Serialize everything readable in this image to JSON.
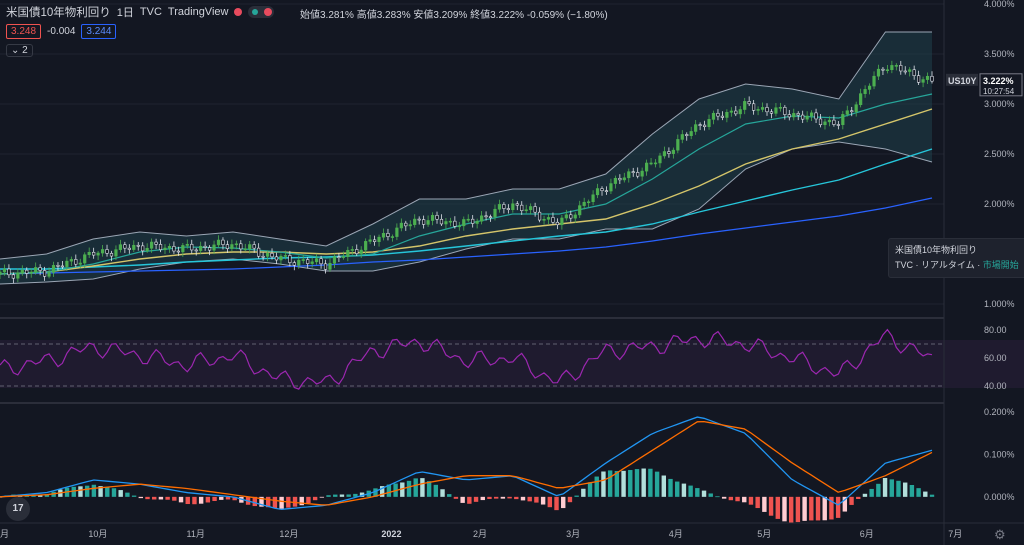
{
  "header": {
    "symbol_name": "米国債10年物利回り",
    "interval": "1日",
    "exchange": "TVC",
    "source": "TradingView",
    "ohlc": {
      "open_label": "始値",
      "open": "3.281%",
      "high_label": "高値",
      "high": "3.283%",
      "low_label": "安値",
      "low": "3.209%",
      "close_label": "終値",
      "close": "3.222%",
      "change": "-0.059% (−1.80%)"
    }
  },
  "trade": {
    "sell": "3.248",
    "spread": "-0.004",
    "buy": "3.244",
    "collapse_label": "2"
  },
  "price_axis": {
    "ticks": [
      "4.000%",
      "3.500%",
      "3.000%",
      "2.500%",
      "2.000%",
      "1.000%"
    ],
    "symbol_tag": "US10Y",
    "last_price": "3.222%",
    "countdown": "10:27:54"
  },
  "tooltip": {
    "name": "米国債10年物利回り",
    "source": "TVC",
    "rt": "リアルタイム",
    "status": "市場開始"
  },
  "rsi_axis": {
    "ticks": [
      "80.00",
      "60.00",
      "40.00"
    ]
  },
  "macd_axis": {
    "ticks": [
      "0.200%",
      "0.100%",
      "0.000%"
    ]
  },
  "time_axis": [
    "月",
    "10月",
    "11月",
    "12月",
    "2022",
    "2月",
    "3月",
    "4月",
    "5月",
    "6月",
    "7月"
  ],
  "colors": {
    "up": "#26a69a",
    "down": "#ef5350",
    "candle_up": "#4caf50",
    "ma_short": "#26a69a",
    "ma_mid": "#d4c56a",
    "ma_long": "#26c6da",
    "ma_xlong": "#2962ff",
    "rsi": "#9c27b0",
    "macd": "#2196f3",
    "signal": "#ff6d00"
  },
  "chart_data": [
    {
      "type": "line",
      "panel": "price",
      "title": "米国債10年物利回り",
      "ylabel": "%",
      "ylim": [
        0.9,
        4.0
      ],
      "x": [
        "2021-09-01",
        "2021-09-15",
        "2021-10-01",
        "2021-10-15",
        "2021-11-01",
        "2021-11-15",
        "2021-12-01",
        "2021-12-15",
        "2022-01-03",
        "2022-01-17",
        "2022-02-01",
        "2022-02-15",
        "2022-03-01",
        "2022-03-15",
        "2022-04-01",
        "2022-04-15",
        "2022-05-02",
        "2022-05-16",
        "2022-06-01",
        "2022-06-15",
        "2022-06-24"
      ],
      "series": [
        {
          "name": "close",
          "values": [
            1.3,
            1.33,
            1.5,
            1.58,
            1.55,
            1.6,
            1.45,
            1.4,
            1.63,
            1.85,
            1.8,
            2.0,
            1.8,
            2.18,
            2.4,
            2.8,
            2.98,
            2.9,
            2.8,
            3.4,
            3.22
          ]
        },
        {
          "name": "ma_short",
          "values": [
            1.3,
            1.32,
            1.4,
            1.52,
            1.57,
            1.56,
            1.52,
            1.46,
            1.5,
            1.68,
            1.8,
            1.9,
            1.9,
            2.0,
            2.25,
            2.55,
            2.8,
            2.88,
            2.86,
            3.0,
            3.1
          ]
        },
        {
          "name": "ma_mid",
          "values": [
            1.3,
            1.32,
            1.38,
            1.45,
            1.5,
            1.52,
            1.52,
            1.5,
            1.52,
            1.58,
            1.68,
            1.75,
            1.8,
            1.85,
            2.0,
            2.18,
            2.4,
            2.55,
            2.65,
            2.8,
            2.95
          ]
        },
        {
          "name": "ma_long",
          "values": [
            1.35,
            1.35,
            1.37,
            1.39,
            1.42,
            1.44,
            1.46,
            1.47,
            1.49,
            1.53,
            1.58,
            1.63,
            1.68,
            1.72,
            1.8,
            1.92,
            2.03,
            2.14,
            2.24,
            2.4,
            2.55
          ]
        },
        {
          "name": "ma_xlong",
          "values": [
            1.3,
            1.31,
            1.32,
            1.33,
            1.34,
            1.35,
            1.37,
            1.39,
            1.42,
            1.44,
            1.47,
            1.5,
            1.53,
            1.57,
            1.63,
            1.7,
            1.76,
            1.82,
            1.88,
            1.96,
            2.06
          ]
        },
        {
          "name": "bb_upper",
          "values": [
            1.45,
            1.5,
            1.65,
            1.72,
            1.68,
            1.72,
            1.65,
            1.58,
            1.8,
            2.05,
            2.05,
            2.15,
            2.15,
            2.3,
            2.7,
            3.05,
            3.2,
            3.15,
            3.05,
            3.72,
            3.72
          ]
        },
        {
          "name": "bb_lower",
          "values": [
            1.2,
            1.22,
            1.25,
            1.35,
            1.42,
            1.45,
            1.4,
            1.33,
            1.33,
            1.42,
            1.55,
            1.65,
            1.65,
            1.75,
            1.75,
            1.95,
            2.35,
            2.55,
            2.62,
            2.55,
            2.42
          ]
        }
      ]
    },
    {
      "type": "line",
      "panel": "rsi",
      "ylim": [
        30,
        85
      ],
      "bands": [
        40,
        70
      ],
      "x": [
        "2021-09-01",
        "2021-09-15",
        "2021-10-01",
        "2021-10-15",
        "2021-11-01",
        "2021-11-15",
        "2021-12-01",
        "2021-12-15",
        "2022-01-03",
        "2022-01-17",
        "2022-02-01",
        "2022-02-15",
        "2022-03-01",
        "2022-03-15",
        "2022-04-01",
        "2022-04-15",
        "2022-05-02",
        "2022-05-16",
        "2022-06-01",
        "2022-06-15",
        "2022-06-24"
      ],
      "series": [
        {
          "name": "RSI",
          "values": [
            52,
            58,
            68,
            62,
            55,
            62,
            45,
            42,
            65,
            72,
            58,
            60,
            42,
            65,
            68,
            74,
            70,
            60,
            48,
            76,
            59
          ]
        }
      ]
    },
    {
      "type": "bar",
      "panel": "macd",
      "ylim": [
        -0.05,
        0.21
      ],
      "x": [
        "2021-09-01",
        "2021-09-15",
        "2021-10-01",
        "2021-10-15",
        "2021-11-01",
        "2021-11-15",
        "2021-12-01",
        "2021-12-15",
        "2022-01-03",
        "2022-01-17",
        "2022-02-01",
        "2022-02-15",
        "2022-03-01",
        "2022-03-15",
        "2022-04-01",
        "2022-04-15",
        "2022-05-02",
        "2022-05-16",
        "2022-06-01",
        "2022-06-15",
        "2022-06-24"
      ],
      "series": [
        {
          "name": "MACD",
          "values": [
            0.0,
            0.01,
            0.04,
            0.03,
            0.01,
            0.0,
            -0.03,
            -0.02,
            0.01,
            0.06,
            0.04,
            0.05,
            0.0,
            0.08,
            0.15,
            0.19,
            0.15,
            0.04,
            -0.02,
            0.08,
            0.11
          ]
        },
        {
          "name": "Signal",
          "values": [
            0.0,
            0.005,
            0.02,
            0.03,
            0.02,
            0.005,
            -0.01,
            -0.02,
            0.0,
            0.03,
            0.05,
            0.05,
            0.02,
            0.04,
            0.11,
            0.18,
            0.16,
            0.08,
            0.01,
            0.05,
            0.105
          ]
        },
        {
          "name": "Histogram",
          "values": [
            0.0,
            0.005,
            0.02,
            0.0,
            -0.01,
            -0.005,
            -0.02,
            0.0,
            0.01,
            0.03,
            -0.01,
            0.0,
            -0.02,
            0.04,
            0.04,
            0.01,
            -0.01,
            -0.04,
            -0.03,
            0.03,
            0.005
          ]
        }
      ]
    }
  ]
}
